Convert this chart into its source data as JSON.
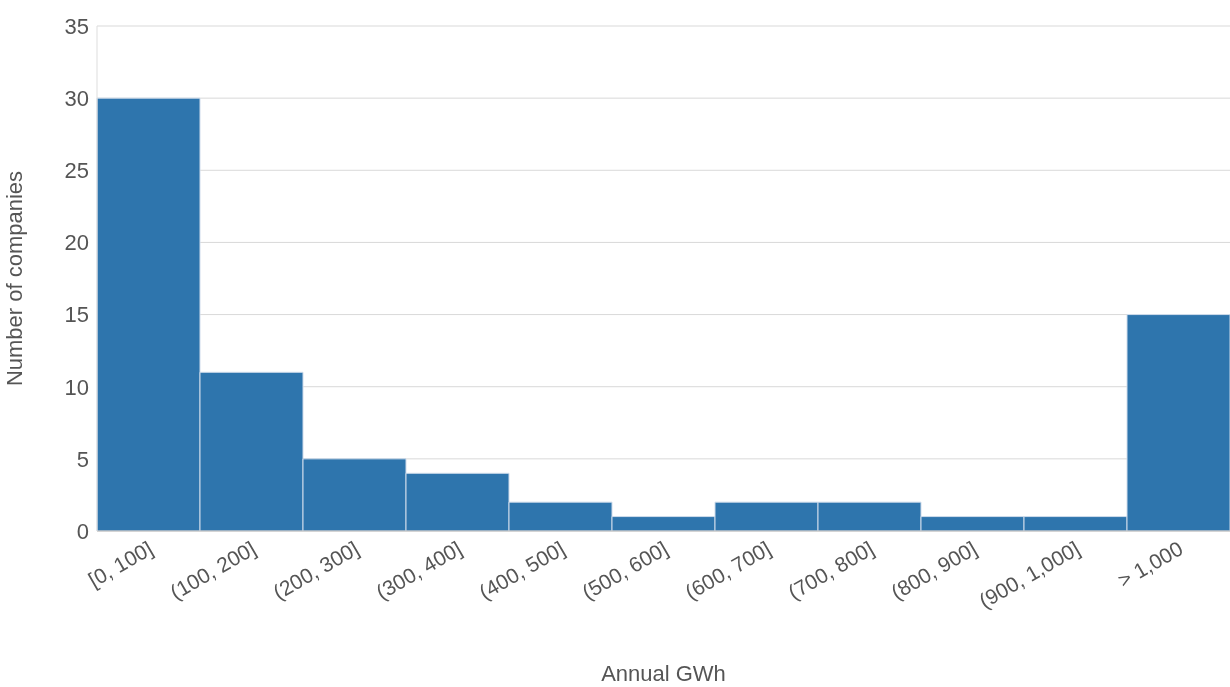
{
  "chart_data": {
    "type": "bar",
    "xlabel": "Annual GWh",
    "ylabel": "Number of companies",
    "categories": [
      "[0, 100]",
      "(100, 200]",
      "(200, 300]",
      "(300, 400]",
      "(400, 500]",
      "(500, 600]",
      "(600, 700]",
      "(700, 800]",
      "(800, 900]",
      "(900, 1,000]",
      "> 1,000"
    ],
    "values": [
      30,
      11,
      5,
      4,
      2,
      1,
      2,
      2,
      1,
      1,
      15
    ],
    "color": "#2e75ad",
    "ylim": [
      0,
      35
    ],
    "yticks": [
      0,
      5,
      10,
      15,
      20,
      25,
      30,
      35
    ],
    "grid": "y",
    "legend": false
  }
}
